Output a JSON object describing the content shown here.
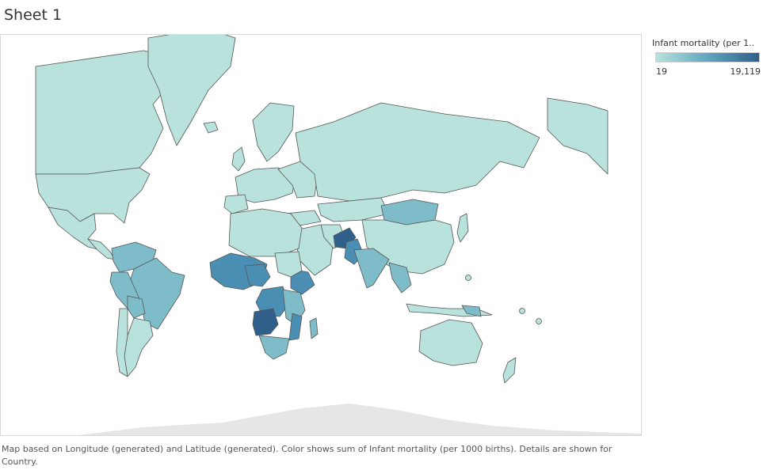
{
  "sheet": {
    "title": "Sheet 1"
  },
  "legend": {
    "title": "Infant mortality (per 1..",
    "min_label": "19",
    "max_label": "19,119",
    "color_low": "#b9e2dc",
    "color_mid": "#5fa7c0",
    "color_high": "#2f5f8a"
  },
  "map": {
    "colors": {
      "land_low": "#b9e2dc",
      "land_mid": "#7fbcca",
      "land_high": "#4a8fb3",
      "land_max": "#2f5f8a",
      "antarctica": "#e6e6e6",
      "border": "#555555",
      "background": "#ffffff"
    }
  },
  "caption": {
    "text": "Map based on Longitude (generated) and Latitude (generated).  Color shows sum of Infant mortality (per 1000 births).  Details are shown for Country."
  }
}
